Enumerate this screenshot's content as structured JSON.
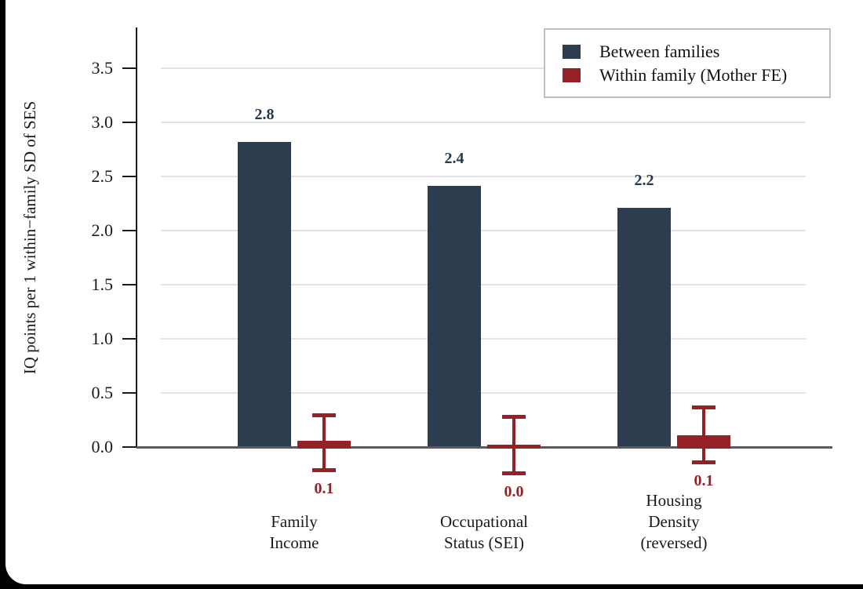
{
  "chart_data": {
    "type": "bar",
    "title": "",
    "xlabel": "",
    "ylabel": "IQ points per 1 within−family SD of SES",
    "categories": [
      [
        "Family",
        "Income"
      ],
      [
        "Occupational",
        "Status (SEI)"
      ],
      [
        "Housing",
        "Density",
        "(reversed)"
      ]
    ],
    "series": [
      {
        "name": "Between families",
        "color": "#2c3d4f",
        "values": [
          2.82,
          2.41,
          2.21
        ],
        "value_labels": [
          "2.8",
          "2.4",
          "2.2"
        ]
      },
      {
        "name": "Within family (Mother FE)",
        "color": "#942125",
        "values": [
          0.06,
          0.02,
          0.11
        ],
        "value_labels": [
          "0.1",
          "0.0",
          "0.1"
        ],
        "ci_high": [
          0.3,
          0.28,
          0.37
        ],
        "ci_low": [
          -0.21,
          -0.24,
          -0.14
        ]
      }
    ],
    "yticks": [
      0.0,
      0.5,
      1.0,
      1.5,
      2.0,
      2.5,
      3.0,
      3.5
    ],
    "ytick_labels": [
      "0.0",
      "0.5",
      "1.0",
      "1.5",
      "2.0",
      "2.5",
      "3.0",
      "3.5"
    ],
    "ylim": [
      -0.35,
      3.88
    ],
    "grid": true,
    "legend_position": "top-right",
    "colors": {
      "grid": "#e3e3e3",
      "baseline": "#5a5a5a",
      "axis": "#1a1a1a",
      "between_value_label": "#24384e",
      "within_value_label": "#942125",
      "legend_border": "#c0c0c0"
    }
  }
}
